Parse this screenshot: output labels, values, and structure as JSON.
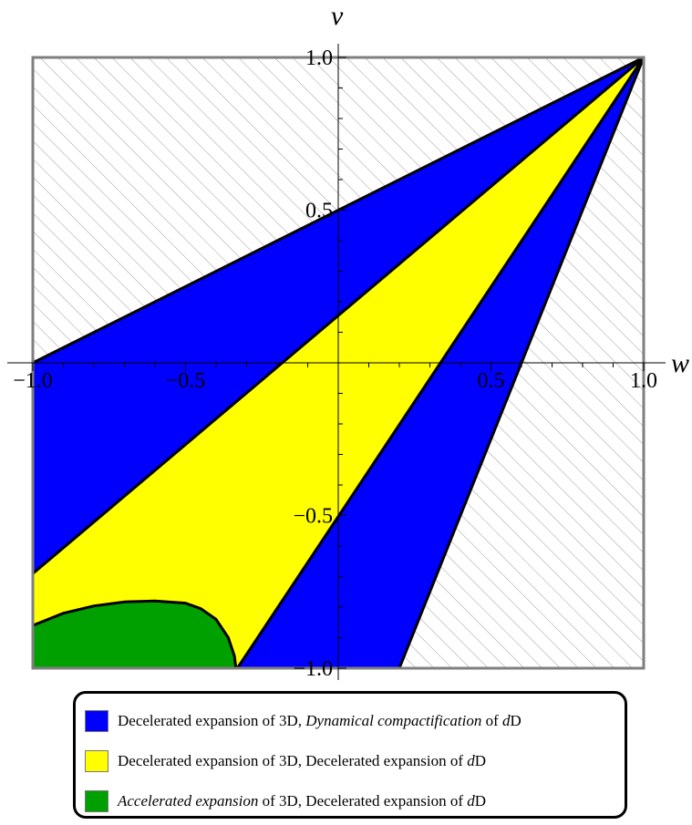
{
  "chart_data": {
    "type": "area",
    "xlabel": "w",
    "ylabel": "v",
    "xlim": [
      -1.0,
      1.0
    ],
    "ylim": [
      -1.0,
      1.0
    ],
    "x_ticks": [
      -1.0,
      -0.5,
      0.5,
      1.0
    ],
    "y_ticks": [
      -1.0,
      -0.5,
      0.5,
      1.0
    ],
    "x_tick_labels": [
      "−1.0",
      "−0.5",
      "0.5",
      "1.0"
    ],
    "y_tick_labels": [
      "−1.0",
      "−0.5",
      "0.5",
      "1.0"
    ],
    "grid": false,
    "legend_placement": "bottom",
    "excluded_region": {
      "pattern": "hatched",
      "color": "#9e9e9e"
    },
    "regions": [
      {
        "name": "Decelerated expansion of 3D, Dynamical compactification of dD",
        "color": "#0000ff",
        "polygons": [
          [
            [
              -1.0,
              0.0
            ],
            [
              1.0,
              1.0
            ],
            [
              -1.0,
              -0.69
            ]
          ],
          [
            [
              1.0,
              1.0
            ],
            [
              -0.33,
              -1.0
            ],
            [
              0.2,
              -1.0
            ]
          ]
        ]
      },
      {
        "name": "Decelerated expansion of 3D, Decelerated expansion of dD",
        "color": "#ffff00",
        "polygon": [
          [
            -1.0,
            -0.69
          ],
          [
            1.0,
            1.0
          ],
          [
            -0.33,
            -1.0
          ],
          [
            -1.0,
            -1.0
          ]
        ]
      },
      {
        "name": "Accelerated expansion of 3D, Decelerated expansion of dD",
        "color": "#00a000",
        "boundary": [
          [
            -1.0,
            -0.86
          ],
          [
            -0.9,
            -0.82
          ],
          [
            -0.8,
            -0.796
          ],
          [
            -0.7,
            -0.783
          ],
          [
            -0.6,
            -0.78
          ],
          [
            -0.5,
            -0.787
          ],
          [
            -0.45,
            -0.805
          ],
          [
            -0.4,
            -0.84
          ],
          [
            -0.36,
            -0.9
          ],
          [
            -0.34,
            -0.96
          ],
          [
            -0.335,
            -1.0
          ]
        ]
      }
    ]
  },
  "legend": {
    "items": [
      {
        "color": "#0000ff",
        "parts": [
          [
            "Decelerated expansion of 3D, ",
            false
          ],
          [
            "Dynamical compactification",
            true
          ],
          [
            " of ",
            false
          ],
          [
            "d",
            true
          ],
          [
            "D",
            false
          ]
        ]
      },
      {
        "color": "#ffff00",
        "parts": [
          [
            "Decelerated expansion of 3D, Decelerated expansion of ",
            false
          ],
          [
            "d",
            true
          ],
          [
            "D",
            false
          ]
        ]
      },
      {
        "color": "#00a000",
        "parts": [
          [
            "Accelerated expansion",
            true
          ],
          [
            " of 3D, Decelerated expansion of ",
            false
          ],
          [
            "d",
            true
          ],
          [
            "D",
            false
          ]
        ]
      }
    ]
  }
}
